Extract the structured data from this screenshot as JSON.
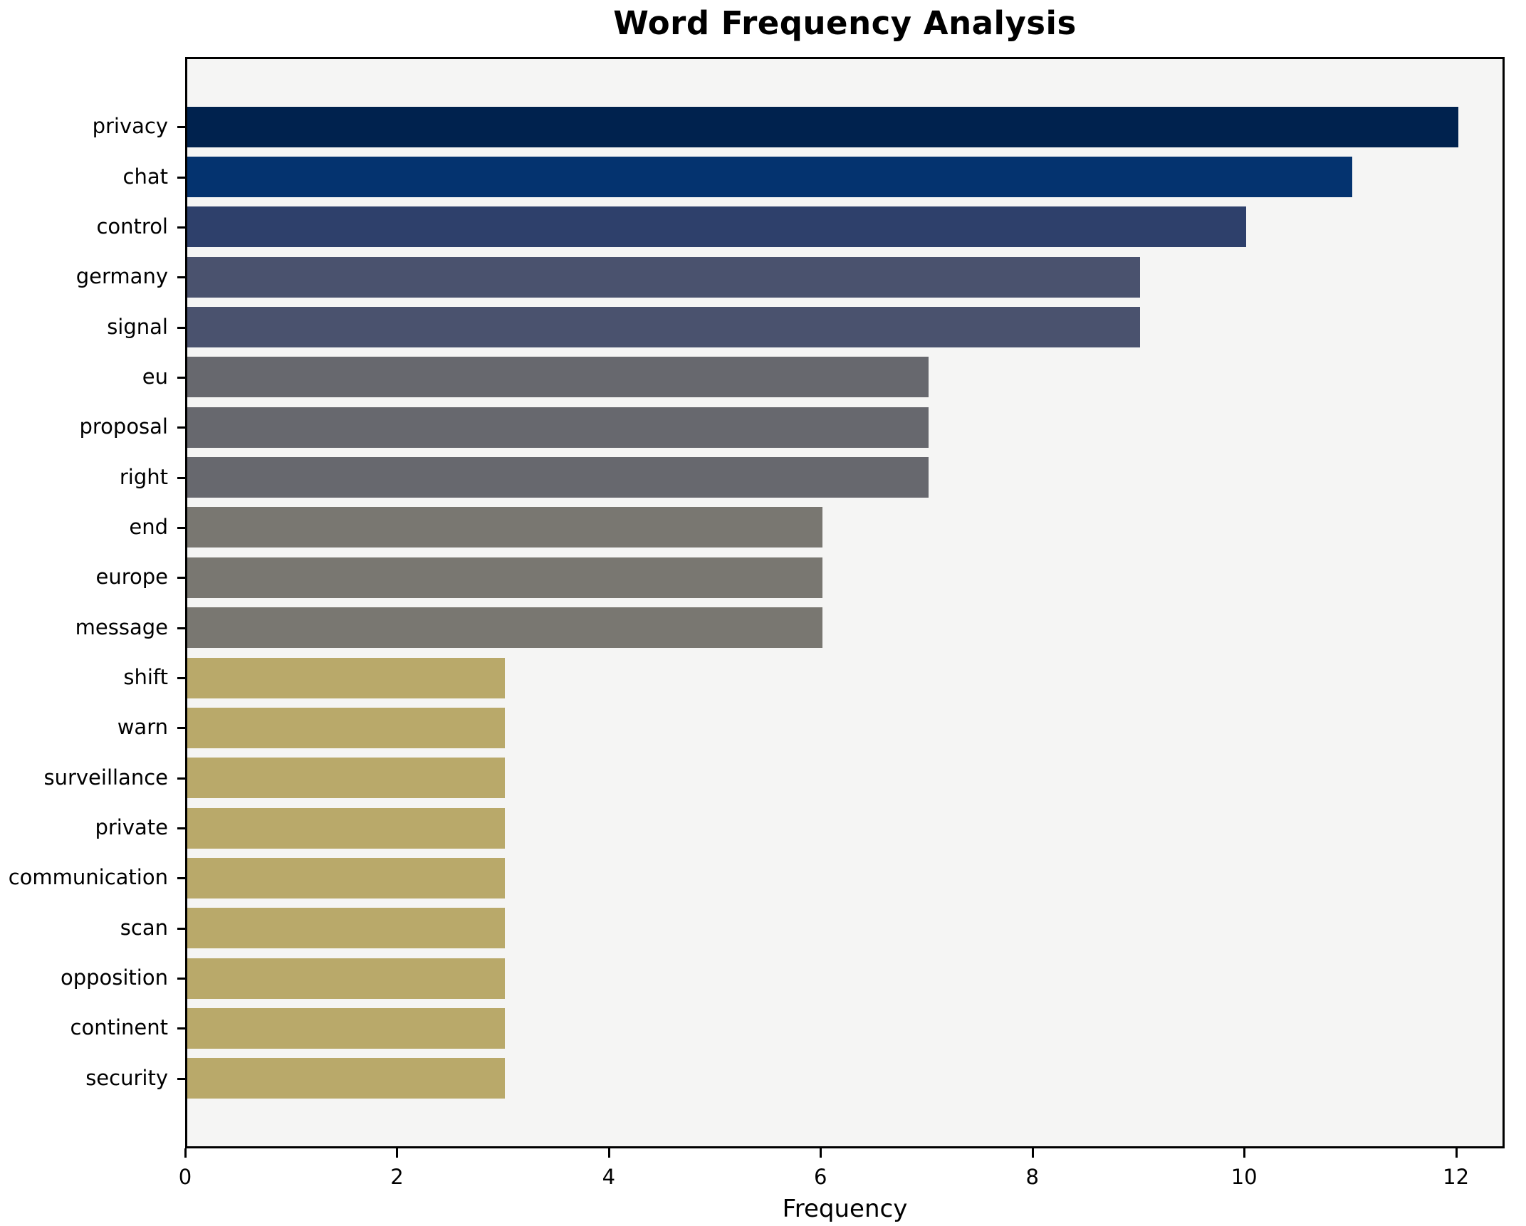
{
  "chart_data": {
    "type": "bar",
    "orientation": "horizontal",
    "title": "Word Frequency Analysis",
    "xlabel": "Frequency",
    "ylabel": "",
    "categories": [
      "privacy",
      "chat",
      "control",
      "germany",
      "signal",
      "eu",
      "proposal",
      "right",
      "end",
      "europe",
      "message",
      "shift",
      "warn",
      "surveillance",
      "private",
      "communication",
      "scan",
      "opposition",
      "continent",
      "security"
    ],
    "values": [
      12,
      11,
      10,
      9,
      9,
      7,
      7,
      7,
      6,
      6,
      6,
      3,
      3,
      3,
      3,
      3,
      3,
      3,
      3,
      3
    ],
    "bar_colors": [
      "#00224E",
      "#04336F",
      "#2E406B",
      "#4A526E",
      "#4A526E",
      "#67686E",
      "#67686E",
      "#67686E",
      "#797771",
      "#797771",
      "#797771",
      "#B9A96A",
      "#B9A96A",
      "#B9A96A",
      "#B9A96A",
      "#B9A96A",
      "#B9A96A",
      "#B9A96A",
      "#B9A96A",
      "#B9A96A"
    ],
    "xlim": [
      0,
      12.46
    ],
    "xticks": [
      0,
      2,
      4,
      6,
      8,
      10,
      12
    ],
    "grid": false,
    "legend": "none",
    "plot_background": "#f5f5f4",
    "figure_background": "#ffffff",
    "spine_color": "#000000",
    "text_color": "#000000"
  }
}
